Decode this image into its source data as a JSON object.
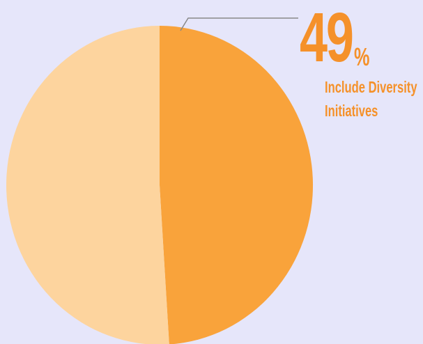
{
  "chart_data": {
    "type": "pie",
    "categories": [
      "Include Diversity Initiatives",
      ""
    ],
    "values": [
      49,
      51
    ],
    "colors": [
      "#f9a33b",
      "#fdd49e"
    ],
    "callout": {
      "value": "49",
      "unit": "%",
      "label": "Include Diversity\nInitiatives"
    }
  }
}
